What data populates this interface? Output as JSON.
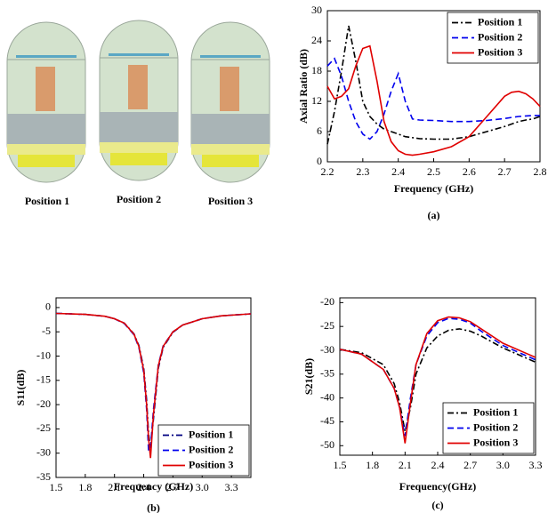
{
  "illustration": {
    "labels": [
      "Position 1",
      "Position 2",
      "Position 3"
    ]
  },
  "chart_data": [
    {
      "type": "line",
      "caption": "(a)",
      "x_label": "Frequency (GHz)",
      "y_label": "Axial Ratio (dB)",
      "x": [
        2.2,
        2.22,
        2.24,
        2.26,
        2.28,
        2.3,
        2.32,
        2.34,
        2.36,
        2.38,
        2.4,
        2.42,
        2.44,
        2.46,
        2.5,
        2.55,
        2.6,
        2.65,
        2.7,
        2.72,
        2.74,
        2.76,
        2.78,
        2.8
      ],
      "series": [
        {
          "name": "Position 1",
          "color": "#000000",
          "style": "dash-dot",
          "values": [
            3.5,
            10,
            18,
            27,
            20,
            12,
            9,
            7.5,
            6.5,
            6,
            5.5,
            5,
            4.8,
            4.6,
            4.5,
            4.5,
            5,
            6,
            7,
            7.5,
            8,
            8.3,
            8.5,
            9
          ]
        },
        {
          "name": "Position 2",
          "color": "#0000ee",
          "style": "dash",
          "values": [
            19,
            20.5,
            17,
            12,
            8,
            5.5,
            4.5,
            6,
            9.5,
            14,
            17.5,
            12,
            8.5,
            8.3,
            8.2,
            8,
            8,
            8.2,
            8.6,
            8.8,
            9,
            9.1,
            9.2,
            9.2
          ]
        },
        {
          "name": "Position 3",
          "color": "#e00000",
          "style": "solid",
          "values": [
            15,
            12.5,
            13,
            14.5,
            19,
            22.5,
            23,
            16,
            8,
            4,
            2.2,
            1.5,
            1.3,
            1.5,
            2,
            3,
            5,
            9,
            13,
            13.8,
            14,
            13.5,
            12.5,
            11
          ]
        }
      ],
      "xlim": [
        2.2,
        2.8
      ],
      "xticks": [
        2.2,
        2.3,
        2.4,
        2.5,
        2.6,
        2.7,
        2.8
      ],
      "ylim": [
        0,
        30
      ],
      "yticks": [
        0,
        6,
        12,
        18,
        24,
        30
      ],
      "legend": "upper right"
    },
    {
      "type": "line",
      "caption": "(b)",
      "x_label": "Frequency (GHz)",
      "y_label": "S11(dB)",
      "x": [
        1.5,
        1.8,
        2.0,
        2.1,
        2.2,
        2.3,
        2.35,
        2.4,
        2.43,
        2.45,
        2.47,
        2.5,
        2.55,
        2.6,
        2.7,
        2.8,
        3.0,
        3.2,
        3.5
      ],
      "series": [
        {
          "name": "Position 1",
          "color": "#000080",
          "style": "dash-dot",
          "values": [
            -1.2,
            -1.4,
            -1.8,
            -2.3,
            -3.2,
            -5.4,
            -7.8,
            -12.5,
            -19,
            -26,
            -29,
            -23,
            -12.5,
            -8.2,
            -5.1,
            -3.6,
            -2.3,
            -1.7,
            -1.3
          ]
        },
        {
          "name": "Position 2",
          "color": "#0000ee",
          "style": "dash",
          "values": [
            -1.2,
            -1.4,
            -1.8,
            -2.3,
            -3.3,
            -5.6,
            -8.2,
            -13.5,
            -21,
            -29.5,
            -29,
            -21,
            -11.8,
            -7.9,
            -5,
            -3.6,
            -2.3,
            -1.7,
            -1.3
          ]
        },
        {
          "name": "Position 3",
          "color": "#e00000",
          "style": "solid",
          "values": [
            -1.2,
            -1.4,
            -1.8,
            -2.3,
            -3.2,
            -5.5,
            -8,
            -13,
            -20,
            -27,
            -31,
            -22,
            -12,
            -8,
            -5,
            -3.6,
            -2.3,
            -1.7,
            -1.3
          ]
        }
      ],
      "xlim": [
        1.5,
        3.5
      ],
      "xticks": [
        1.5,
        1.8,
        2.1,
        2.4,
        2.7,
        {
          "value": 3,
          "label": "3.0"
        },
        3.3
      ],
      "ylim": [
        -35,
        2
      ],
      "yticks": [
        0,
        -5,
        -10,
        -15,
        -20,
        -25,
        -30,
        -35
      ],
      "legend": "lower right"
    },
    {
      "type": "line",
      "caption": "(c)",
      "x_label": "Frequency(GHz)",
      "y_label": "S21(dB)",
      "x": [
        1.5,
        1.7,
        1.9,
        2.0,
        2.05,
        2.1,
        2.15,
        2.2,
        2.3,
        2.4,
        2.5,
        2.6,
        2.7,
        2.8,
        3.0,
        3.2,
        3.3
      ],
      "series": [
        {
          "name": "Position 1",
          "color": "#000000",
          "style": "dash-dot",
          "values": [
            -29.8,
            -30.5,
            -33,
            -37,
            -41,
            -47,
            -42,
            -35,
            -29.5,
            -27,
            -25.8,
            -25.5,
            -26,
            -27,
            -29.5,
            -31.5,
            -32.5
          ]
        },
        {
          "name": "Position 2",
          "color": "#0000ee",
          "style": "dash",
          "values": [
            -29.8,
            -30.8,
            -34,
            -38,
            -42,
            -48,
            -40,
            -33,
            -27,
            -24.2,
            -23.3,
            -23.5,
            -24.3,
            -26,
            -29,
            -31,
            -32
          ]
        },
        {
          "name": "Position 3",
          "color": "#e00000",
          "style": "solid",
          "values": [
            -29.8,
            -30.8,
            -34,
            -38,
            -42,
            -49.5,
            -41,
            -33,
            -26.5,
            -23.8,
            -23,
            -23.2,
            -24,
            -25.5,
            -28.5,
            -30.5,
            -31.5
          ]
        }
      ],
      "xlim": [
        1.5,
        3.3
      ],
      "xticks": [
        1.5,
        1.8,
        2.1,
        2.4,
        2.7,
        {
          "value": 3,
          "label": "3.0"
        },
        3.3
      ],
      "ylim": [
        -52,
        -19
      ],
      "yticks": [
        -20,
        -25,
        -30,
        -35,
        -40,
        -45,
        -50
      ],
      "legend": "lower right"
    }
  ]
}
